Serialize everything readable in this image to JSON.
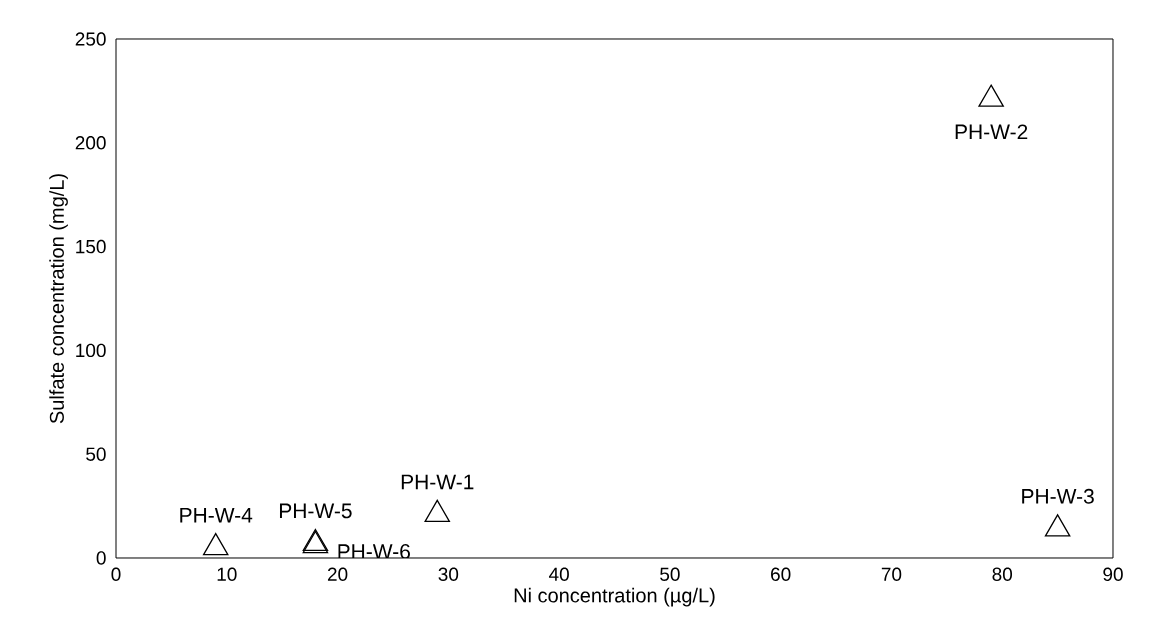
{
  "chart_data": {
    "type": "scatter",
    "xlabel": "Ni concentration (µg/L)",
    "ylabel": "Sulfate concentration (mg/L)",
    "x": [
      29,
      79,
      85,
      9,
      18,
      18
    ],
    "series": [
      {
        "color": "#000000",
        "values": [
          21,
          221,
          14,
          5,
          7,
          6
        ],
        "value_labels": [
          "PH-W-1",
          "PH-W-2",
          "PH-W-3",
          "PH-W-4",
          "PH-W-5",
          "PH-W-6"
        ]
      }
    ],
    "marker": "triangle",
    "xlim": [
      0,
      90
    ],
    "xticks": [
      0,
      10,
      20,
      30,
      40,
      50,
      60,
      70,
      80,
      90
    ],
    "ylim": [
      0,
      250
    ],
    "yticks": [
      0,
      50,
      100,
      150,
      200,
      250
    ]
  }
}
